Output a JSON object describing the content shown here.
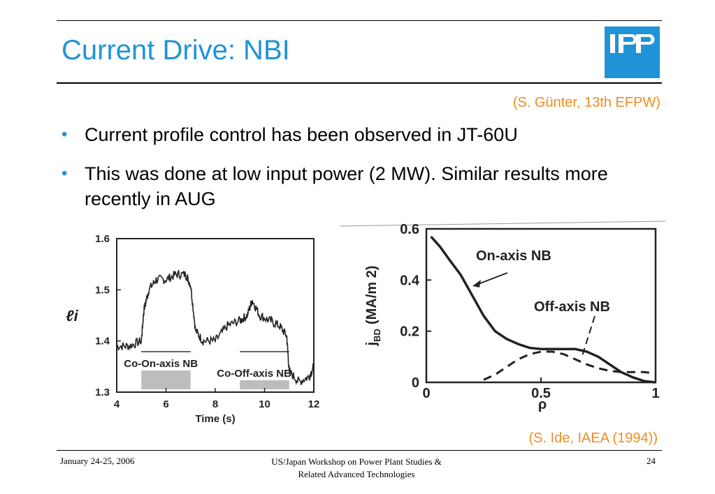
{
  "slide": {
    "title": "Current Drive: NBI",
    "reference_top": "(S. Günter, 13th EFPW)",
    "reference_bottom": "(S. Ide, IAEA (1994))",
    "bullets": [
      "Current profile control has been observed in JT-60U",
      "This was done at low input power (2 MW). Similar results more recently in AUG"
    ],
    "bullet_symbol": "•",
    "accent_color": "#1f93d8",
    "reference_color": "#f08c1e"
  },
  "logo": {
    "icon": "ipp-logo-icon",
    "color": "#1f93d8"
  },
  "footer": {
    "date": "January 24-25, 2006",
    "event_line1": "US/Japan Workshop on Power Plant Studies &",
    "event_line2": "Related Advanced Technologies",
    "page": "24"
  },
  "chart_data": [
    {
      "type": "line",
      "xlabel": "Time (s)",
      "ylabel": "ℓi",
      "xlim": [
        4,
        12
      ],
      "ylim": [
        1.3,
        1.6
      ],
      "x_ticks": [
        "4",
        "6",
        "8",
        "10",
        "12"
      ],
      "y_ticks": [
        "1.3",
        "1.4",
        "1.5",
        "1.6"
      ],
      "grid": false,
      "series": [
        {
          "x": [
            4.0,
            4.5,
            5.0,
            5.1,
            5.3,
            5.6,
            6.0,
            6.4,
            6.8,
            7.0,
            7.2,
            7.5,
            8.0,
            8.5,
            9.0,
            9.3,
            9.5,
            9.8,
            10.2,
            10.6,
            10.9,
            11.0,
            11.4,
            11.8,
            12.0
          ],
          "y": [
            1.39,
            1.39,
            1.4,
            1.46,
            1.5,
            1.52,
            1.52,
            1.53,
            1.53,
            1.51,
            1.42,
            1.4,
            1.4,
            1.43,
            1.44,
            1.45,
            1.48,
            1.45,
            1.44,
            1.43,
            1.41,
            1.34,
            1.32,
            1.33,
            1.35
          ]
        }
      ],
      "annotations": [
        {
          "text": "Co-On-axis NB",
          "x_start": 5.0,
          "x_end": 7.0
        },
        {
          "text": "Co-Off-axis NB",
          "x_start": 9.0,
          "x_end": 11.0
        }
      ]
    },
    {
      "type": "line",
      "xlabel": "ρ",
      "ylabel": "j_BD (MA/m 2)",
      "ylabel_main": "j",
      "ylabel_sub": "BD",
      "ylabel_unit": "(MA/m 2)",
      "xlim": [
        0,
        1
      ],
      "ylim": [
        0,
        0.6
      ],
      "x_ticks": [
        "0",
        "0.5",
        "1"
      ],
      "y_ticks": [
        "0",
        "0.2",
        "0.4",
        "0.6"
      ],
      "grid": false,
      "series": [
        {
          "x": [
            0.02,
            0.06,
            0.1,
            0.15,
            0.2,
            0.25,
            0.3,
            0.35,
            0.4,
            0.45,
            0.5,
            0.55,
            0.6,
            0.65,
            0.7,
            0.75,
            0.8,
            0.85,
            0.9,
            0.95,
            1.0
          ],
          "y": [
            0.57,
            0.53,
            0.48,
            0.42,
            0.34,
            0.26,
            0.2,
            0.17,
            0.15,
            0.135,
            0.13,
            0.13,
            0.13,
            0.13,
            0.12,
            0.1,
            0.07,
            0.04,
            0.02,
            0.005,
            0.0
          ]
        },
        {
          "x": [
            0.25,
            0.3,
            0.35,
            0.4,
            0.45,
            0.5,
            0.55,
            0.6,
            0.65,
            0.7,
            0.75,
            0.8,
            0.85,
            0.9,
            0.95,
            1.0
          ],
          "y": [
            0.01,
            0.03,
            0.06,
            0.09,
            0.11,
            0.12,
            0.12,
            0.11,
            0.09,
            0.07,
            0.055,
            0.045,
            0.04,
            0.04,
            0.04,
            0.035
          ]
        }
      ],
      "annotations": [
        {
          "text": "On-axis NB",
          "x": 0.55,
          "y": 0.5
        },
        {
          "text": "Off-axis NB",
          "x": 0.82,
          "y": 0.3
        }
      ]
    }
  ]
}
